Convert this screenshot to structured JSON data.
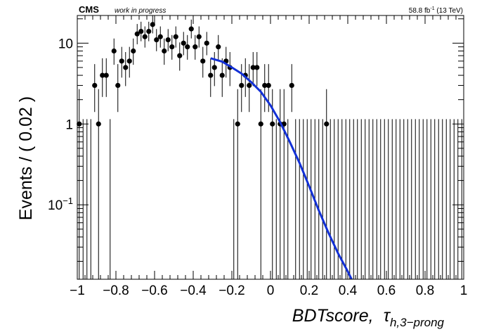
{
  "header": {
    "experiment": "CMS",
    "status": "work in progress",
    "lumi": "58.8 fb",
    "lumi_exp": "-1",
    "energy": " (13 TeV)"
  },
  "chart_data": {
    "type": "scatter",
    "title": "",
    "ylabel": "Events / ( 0.02 )",
    "xlabel_main": "BDTscore,",
    "xlabel_tau": "τ",
    "xlabel_sub": "h,3−prong",
    "xlim": [
      -1,
      1
    ],
    "ylim": [
      0.012,
      22
    ],
    "ylog": true,
    "x_ticks": [
      "−1",
      "−0.8",
      "−0.6",
      "−0.4",
      "−0.2",
      "0",
      "0.2",
      "0.4",
      "0.6",
      "0.8",
      "1"
    ],
    "y_ticks": [
      {
        "value": 10,
        "label": "10",
        "sup": ""
      },
      {
        "value": 1,
        "label": "1",
        "sup": ""
      },
      {
        "value": 0.1,
        "label": "10",
        "sup": "−1"
      }
    ],
    "bin_width": 0.02,
    "series": [
      {
        "kind": "points",
        "color": "#000000",
        "x": [
          -0.99,
          -0.91,
          -0.89,
          -0.87,
          -0.85,
          -0.81,
          -0.79,
          -0.77,
          -0.75,
          -0.73,
          -0.71,
          -0.69,
          -0.67,
          -0.65,
          -0.63,
          -0.61,
          -0.59,
          -0.57,
          -0.55,
          -0.53,
          -0.51,
          -0.49,
          -0.47,
          -0.45,
          -0.43,
          -0.41,
          -0.39,
          -0.37,
          -0.35,
          -0.33,
          -0.31,
          -0.29,
          -0.27,
          -0.25,
          -0.23,
          -0.21,
          -0.17,
          -0.15,
          -0.13,
          -0.11,
          -0.09,
          -0.07,
          -0.05,
          -0.03,
          -0.01,
          0.01,
          0.05,
          0.07,
          0.11,
          0.29
        ],
        "values": [
          1,
          3,
          1,
          4,
          4,
          8,
          3,
          6,
          5,
          6,
          8,
          13,
          14,
          12,
          14,
          17,
          11,
          12,
          8,
          11,
          9,
          12,
          7,
          10,
          9,
          15,
          9,
          12,
          6,
          10,
          4,
          5,
          9,
          4,
          6,
          5,
          1,
          3,
          4,
          3,
          5,
          5,
          1,
          3,
          3,
          1,
          1,
          1,
          3,
          1
        ]
      },
      {
        "kind": "fit",
        "color": "#1230d6",
        "x": [
          -0.31,
          -0.25,
          -0.2,
          -0.15,
          -0.1,
          -0.05,
          0,
          0.05,
          0.1,
          0.15,
          0.2,
          0.25,
          0.3,
          0.35,
          0.4,
          0.42
        ],
        "values": [
          6.5,
          5.9,
          5.0,
          4.2,
          3.3,
          2.5,
          1.7,
          1.05,
          0.6,
          0.33,
          0.17,
          0.085,
          0.045,
          0.025,
          0.015,
          0.012
        ]
      }
    ]
  }
}
